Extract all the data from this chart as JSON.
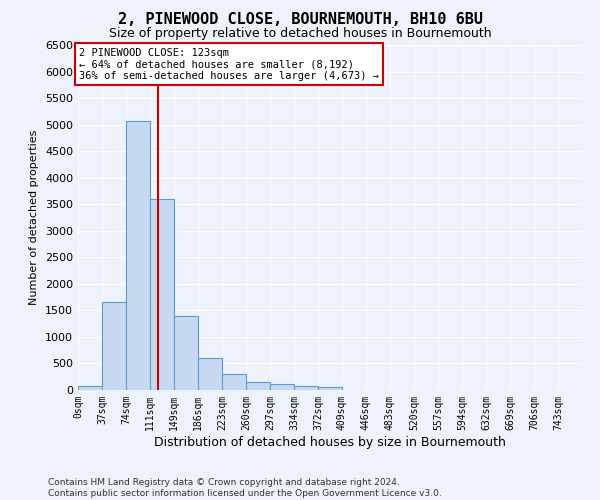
{
  "title": "2, PINEWOOD CLOSE, BOURNEMOUTH, BH10 6BU",
  "subtitle": "Size of property relative to detached houses in Bournemouth",
  "xlabel": "Distribution of detached houses by size in Bournemouth",
  "ylabel": "Number of detached properties",
  "footer_line1": "Contains HM Land Registry data © Crown copyright and database right 2024.",
  "footer_line2": "Contains public sector information licensed under the Open Government Licence v3.0.",
  "bin_labels": [
    "0sqm",
    "37sqm",
    "74sqm",
    "111sqm",
    "149sqm",
    "186sqm",
    "223sqm",
    "260sqm",
    "297sqm",
    "334sqm",
    "372sqm",
    "409sqm",
    "446sqm",
    "483sqm",
    "520sqm",
    "557sqm",
    "594sqm",
    "632sqm",
    "669sqm",
    "706sqm",
    "743sqm"
  ],
  "bar_values": [
    70,
    1650,
    5070,
    3600,
    1400,
    610,
    300,
    145,
    115,
    75,
    55,
    0,
    0,
    0,
    0,
    0,
    0,
    0,
    0,
    0,
    0
  ],
  "bar_color": "#c6d9f1",
  "bar_edge_color": "#5b9bd5",
  "vline_color": "#cc0000",
  "ylim": [
    0,
    6500
  ],
  "yticks": [
    0,
    500,
    1000,
    1500,
    2000,
    2500,
    3000,
    3500,
    4000,
    4500,
    5000,
    5500,
    6000,
    6500
  ],
  "annotation_title": "2 PINEWOOD CLOSE: 123sqm",
  "annotation_line2": "← 64% of detached houses are smaller (8,192)",
  "annotation_line3": "36% of semi-detached houses are larger (4,673) →",
  "annotation_box_color": "#cc0000",
  "bin_width": 37,
  "property_sqm": 123,
  "background_color": "#eef2fa",
  "grid_color": "#ffffff"
}
